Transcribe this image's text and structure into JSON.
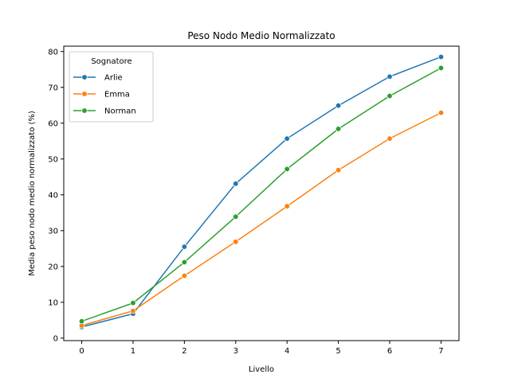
{
  "chart_data": {
    "type": "line",
    "title": "Peso Nodo Medio Normalizzato",
    "xlabel": "Livello",
    "ylabel": "Media peso nodo medio normalizzato (%)",
    "x": [
      0,
      1,
      2,
      3,
      4,
      5,
      6,
      7
    ],
    "xticks": [
      "0",
      "1",
      "2",
      "3",
      "4",
      "5",
      "6",
      "7"
    ],
    "xlim": [
      -0.35,
      7.35
    ],
    "yticks": [
      "0",
      "10",
      "20",
      "30",
      "40",
      "50",
      "60",
      "70",
      "80"
    ],
    "ylim": [
      -0.7,
      81.5
    ],
    "grid": false,
    "legend": {
      "title": "Sognatore",
      "placement": "top-left"
    },
    "series": [
      {
        "name": "Arlie",
        "color": "#1f77b4",
        "marker": "circle",
        "values": [
          3.1,
          6.8,
          25.5,
          43.1,
          55.7,
          64.9,
          73.0,
          78.5
        ]
      },
      {
        "name": "Emma",
        "color": "#ff7f0e",
        "marker": "circle",
        "values": [
          3.5,
          7.6,
          17.4,
          26.9,
          36.8,
          46.9,
          55.7,
          62.9
        ]
      },
      {
        "name": "Norman",
        "color": "#2ca02c",
        "marker": "circle",
        "values": [
          4.7,
          9.8,
          21.2,
          33.9,
          47.2,
          58.4,
          67.6,
          75.4
        ]
      }
    ]
  }
}
